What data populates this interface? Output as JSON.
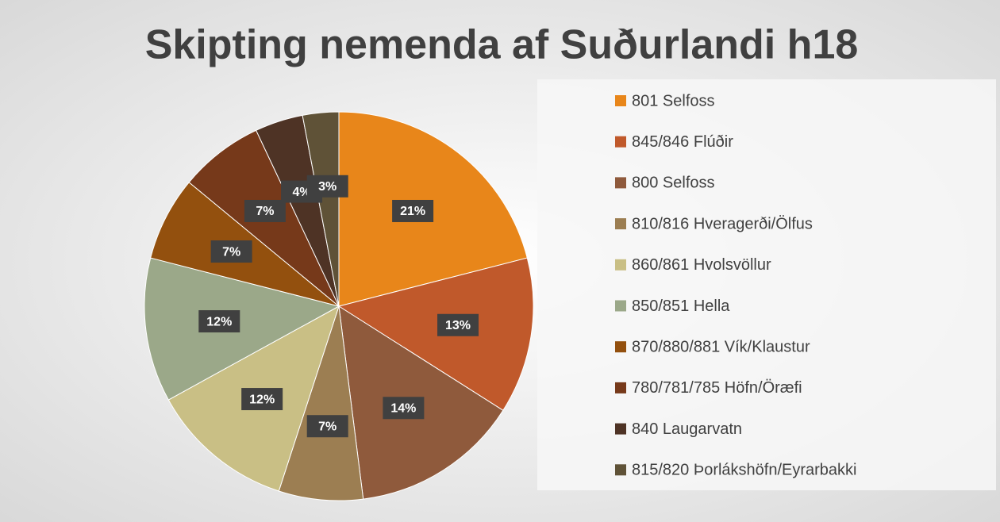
{
  "chart_data": {
    "type": "pie",
    "title": "Skipting nemenda af Suðurlandi h18",
    "categories": [
      "801 Selfoss",
      "845/846 Flúðir",
      "800 Selfoss",
      "810/816 Hveragerði/Ölfus",
      "860/861 Hvolsvöllur",
      "850/851 Hella",
      "870/880/881 Vík/Klaustur",
      "780/781/785 Höfn/Öræfi",
      "840 Laugarvatn",
      "815/820 Þorlákshöfn/Eyrarbakki"
    ],
    "values": [
      21,
      13,
      14,
      7,
      12,
      12,
      7,
      7,
      4,
      3
    ],
    "value_labels": [
      "21%",
      "13%",
      "14%",
      "7%",
      "12%",
      "12%",
      "7%",
      "7%",
      "4%",
      "3%"
    ],
    "colors": [
      "#e8861a",
      "#c0592b",
      "#8f5a3c",
      "#9c7e52",
      "#c9bf85",
      "#9ba889",
      "#93500e",
      "#76391a",
      "#4e3325",
      "#5f5237"
    ],
    "legend": "right"
  }
}
